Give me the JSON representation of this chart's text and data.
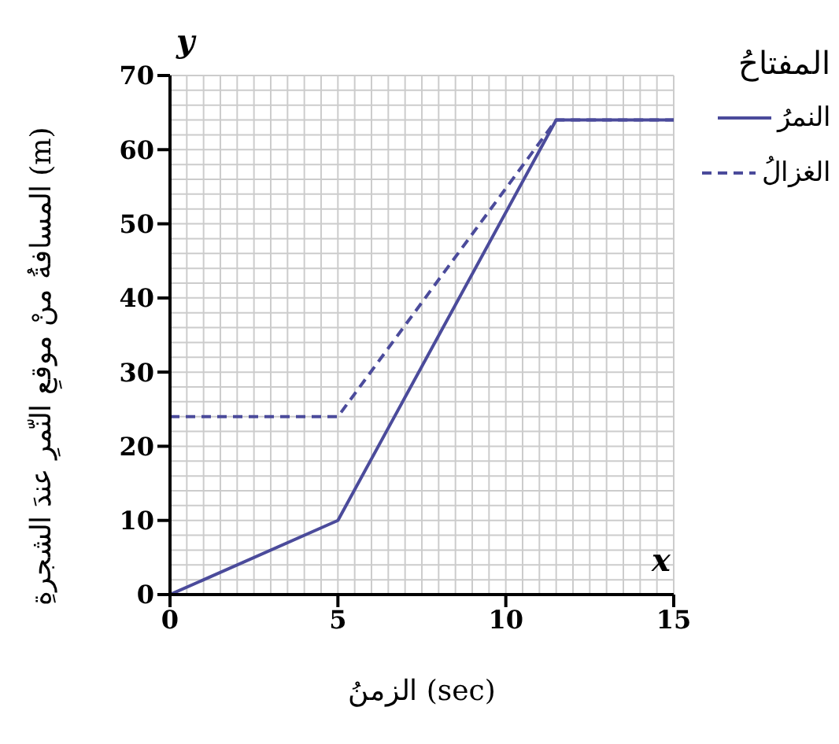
{
  "chart_data": {
    "type": "line",
    "xlabel": "الزمنُ (sec)",
    "ylabel": "المسافةُ منْ موقعِ النّمرِ عندَ الشجرةِ (m)",
    "legend_title": "المفتاحُ",
    "annotations": [
      "x",
      "y"
    ],
    "series": [
      {
        "name": "النمرُ",
        "color": "#4b4b9b",
        "line_style": "solid",
        "x": [
          0,
          5,
          11.5,
          15
        ],
        "values": [
          0,
          10,
          64,
          64
        ]
      },
      {
        "name": "الغزالُ",
        "color": "#4b4b9b",
        "line_style": "dashed",
        "x": [
          0,
          5,
          11.5,
          15
        ],
        "values": [
          24,
          24,
          64,
          64
        ]
      }
    ],
    "xlim": [
      0,
      15
    ],
    "xticks": [
      0,
      5,
      10,
      15
    ],
    "ylim": [
      0,
      70
    ],
    "yticks": [
      0,
      10,
      20,
      30,
      40,
      50,
      60,
      70
    ],
    "grid": true,
    "legend": "right",
    "marker": "none"
  }
}
